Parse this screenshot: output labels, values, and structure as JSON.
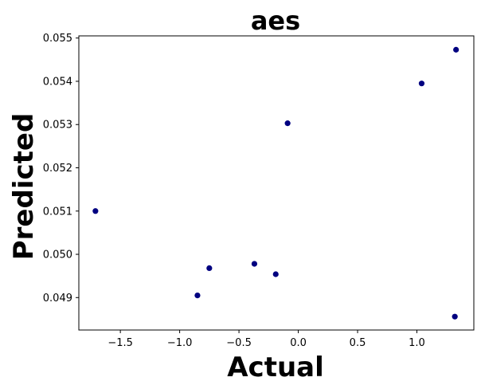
{
  "chart_data": {
    "type": "scatter",
    "title": "aes",
    "xlabel": "Actual",
    "ylabel": "Predicted",
    "xlim": [
      -1.85,
      1.48
    ],
    "ylim": [
      0.04825,
      0.05505
    ],
    "xticks": [
      -1.5,
      -1.0,
      -0.5,
      0.0,
      0.5,
      1.0
    ],
    "xtick_labels": [
      "−1.5",
      "−1.0",
      "−0.5",
      "0.0",
      "0.5",
      "1.0"
    ],
    "yticks": [
      0.049,
      0.05,
      0.051,
      0.052,
      0.053,
      0.054,
      0.055
    ],
    "ytick_labels": [
      "0.049",
      "0.050",
      "0.051",
      "0.052",
      "0.053",
      "0.054",
      "0.055"
    ],
    "grid": false,
    "marker_color": "#000080",
    "points": [
      {
        "x": -1.71,
        "y": 0.051
      },
      {
        "x": -0.85,
        "y": 0.04905
      },
      {
        "x": -0.75,
        "y": 0.04968
      },
      {
        "x": -0.37,
        "y": 0.04978
      },
      {
        "x": -0.19,
        "y": 0.04954
      },
      {
        "x": -0.09,
        "y": 0.05303
      },
      {
        "x": 1.04,
        "y": 0.05395
      },
      {
        "x": 1.33,
        "y": 0.05473
      },
      {
        "x": 1.32,
        "y": 0.04856
      }
    ]
  }
}
